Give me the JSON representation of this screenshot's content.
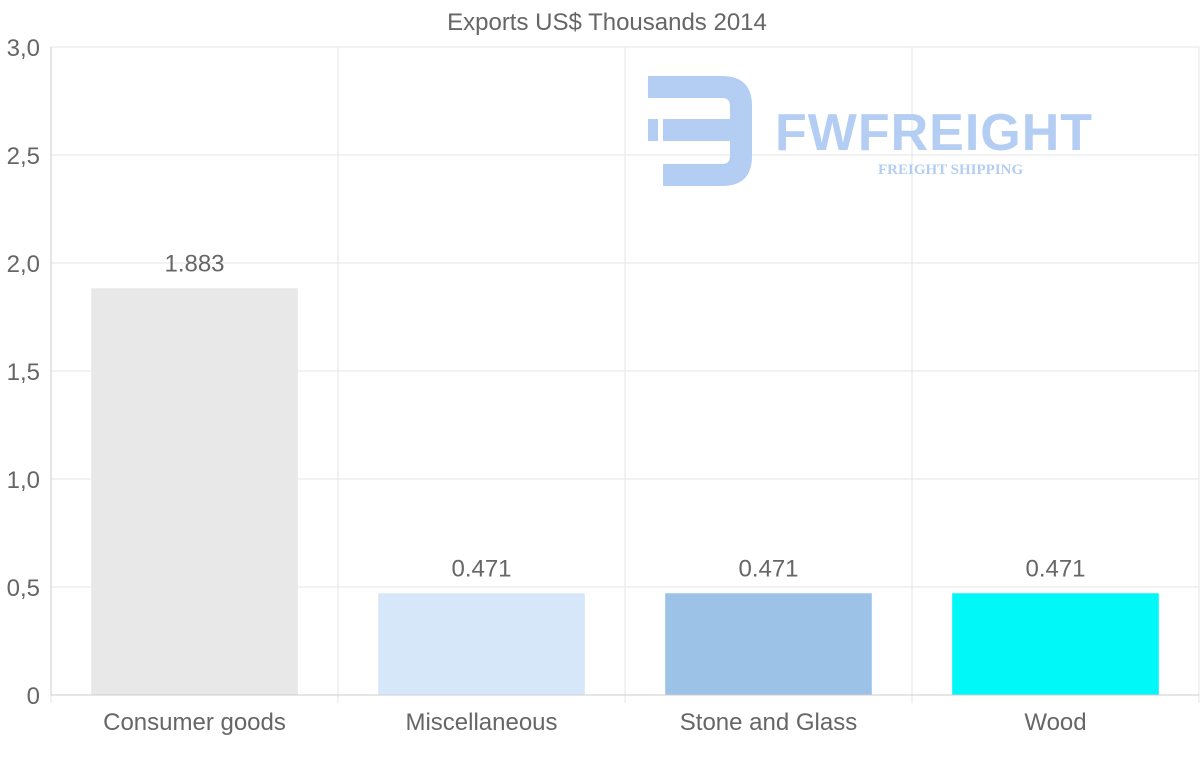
{
  "chart_data": {
    "type": "bar",
    "title": "Exports US$ Thousands 2014",
    "categories": [
      "Consumer goods",
      "Miscellaneous",
      "Stone and Glass",
      "Wood"
    ],
    "values": [
      1.883,
      0.471,
      0.471,
      0.471
    ],
    "data_labels": [
      "1.883",
      "0.471",
      "0.471",
      "0.471"
    ],
    "colors": [
      "#e8e8e8",
      "#d6e7f9",
      "#9cc3e7",
      "#00f8f8"
    ],
    "ylim": [
      0,
      3.0
    ],
    "yticks": [
      0,
      0.5,
      1.0,
      1.5,
      2.0,
      2.5,
      3.0
    ],
    "ytick_labels": [
      "0",
      "0,5",
      "1,0",
      "1,5",
      "2,0",
      "2,5",
      "3,0"
    ],
    "xlabel": "",
    "ylabel": "",
    "grid": true,
    "legend": "none"
  },
  "watermark": {
    "brand": "FWFREIGHT",
    "tagline": "FREIGHT SHIPPING",
    "color": "#b3cdf3"
  }
}
